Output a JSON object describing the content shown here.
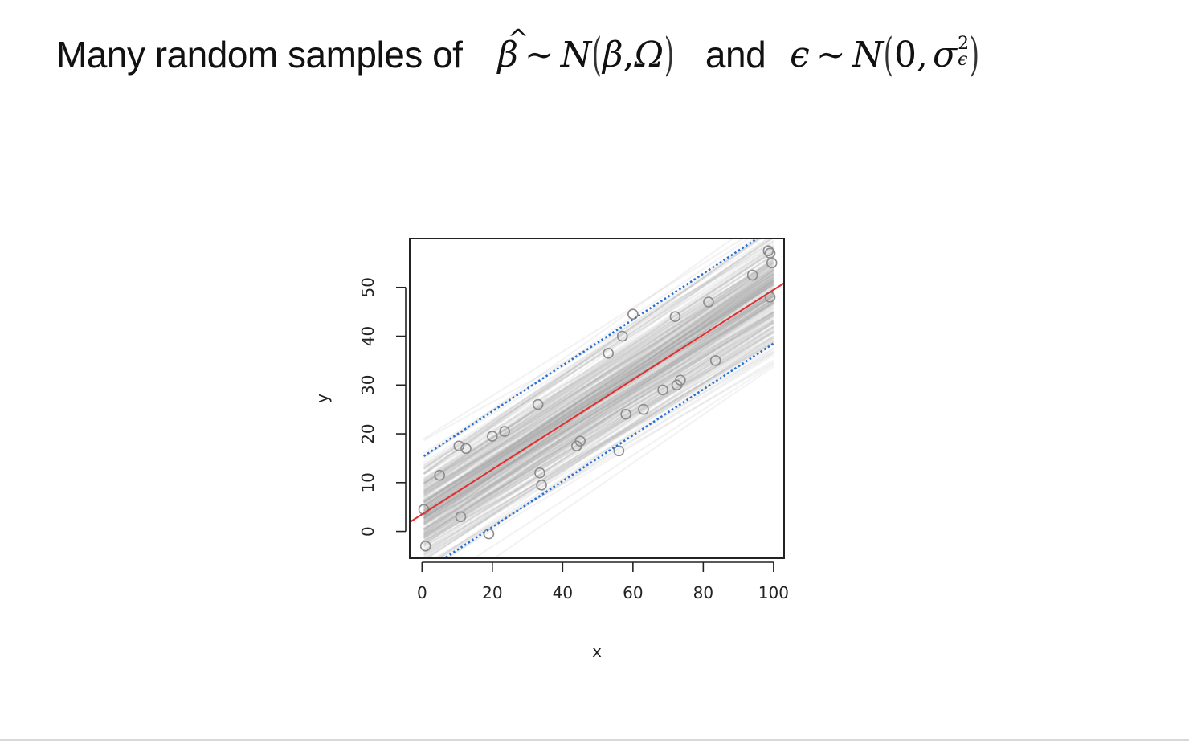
{
  "slide": {
    "title_prefix": "Many random samples of",
    "title_and": "and",
    "beta_hat": "β",
    "hat_mark": "^",
    "tilde": "~",
    "dist_N": "N",
    "beta": "β",
    "comma": ",",
    "omega": "Ω",
    "epsilon": "ϵ",
    "zero": "0,",
    "sigma": "σ",
    "sup_two": "2",
    "sub_eps": "ϵ",
    "paren_open": "(",
    "paren_close": ")"
  },
  "chart_data": {
    "type": "scatter",
    "title": "",
    "xlabel": "x",
    "ylabel": "y",
    "xlim": [
      -3.5,
      103
    ],
    "ylim": [
      -5.5,
      60
    ],
    "x_ticks": [
      0,
      20,
      40,
      60,
      80,
      100
    ],
    "y_ticks": [
      0,
      10,
      20,
      30,
      40,
      50
    ],
    "grid": false,
    "legend": "none",
    "points": [
      [
        0.5,
        4.5
      ],
      [
        1,
        -3
      ],
      [
        5,
        11.5
      ],
      [
        10.5,
        17.5
      ],
      [
        12.5,
        17
      ],
      [
        11,
        3
      ],
      [
        19,
        -0.5
      ],
      [
        20,
        19.5
      ],
      [
        23.5,
        20.5
      ],
      [
        33,
        26
      ],
      [
        34,
        9.5
      ],
      [
        33.5,
        12
      ],
      [
        44,
        17.5
      ],
      [
        45,
        18.5
      ],
      [
        53,
        36.5
      ],
      [
        56,
        16.5
      ],
      [
        57,
        40
      ],
      [
        58,
        24
      ],
      [
        60,
        44.5
      ],
      [
        63,
        25
      ],
      [
        68.5,
        29
      ],
      [
        72,
        44
      ],
      [
        72.5,
        30
      ],
      [
        73.5,
        31
      ],
      [
        81.5,
        47
      ],
      [
        83.5,
        35
      ],
      [
        94,
        52.5
      ],
      [
        98.5,
        57.5
      ],
      [
        99,
        57
      ],
      [
        99.5,
        55
      ],
      [
        99,
        48
      ]
    ],
    "fit_line": {
      "intercept": 3.5,
      "slope": 0.46,
      "color": "#e03030"
    },
    "prediction_band": {
      "upper": {
        "intercept": 15.2,
        "slope": 0.47
      },
      "lower": {
        "intercept": -8.5,
        "slope": 0.47
      },
      "color": "#2a6fd0",
      "style": "dotted"
    },
    "simulated_lines": {
      "count": 260,
      "intercept_mean": 3.5,
      "intercept_sd": 5.5,
      "slope_mean": 0.46,
      "slope_sd": 0.03,
      "color": "#a0a0a0",
      "x_range": [
        0.5,
        100
      ]
    },
    "point_color": "#8c8c8c"
  }
}
